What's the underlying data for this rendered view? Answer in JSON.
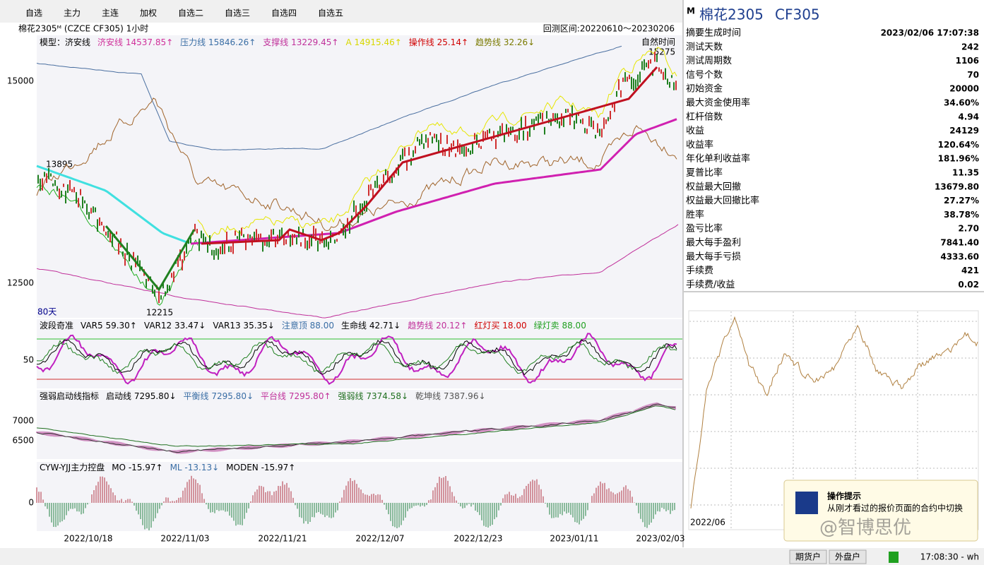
{
  "menu": [
    "自选",
    "主力",
    "主连",
    "加权",
    "自选二",
    "自选三",
    "自选四",
    "自选五"
  ],
  "chart_header": {
    "symbol": "棉花2305ᴹ (CZCE CF305) 1小时",
    "range": "回测区间:20220610～20230206"
  },
  "main_panel": {
    "legend": [
      {
        "text": "模型：济安线",
        "color": "#000000"
      },
      {
        "text": "济安线 14537.85↑",
        "color": "#d0309a"
      },
      {
        "text": "压力线 15846.26↑",
        "color": "#3a6ea5"
      },
      {
        "text": "支撑线 13229.45↑",
        "color": "#c0309a"
      },
      {
        "text": "A 14915.46↑",
        "color": "#d8d800"
      },
      {
        "text": "操作线 25.14↑",
        "color": "#d00000"
      },
      {
        "text": "趋势线 32.26↓",
        "color": "#7a7a00"
      }
    ],
    "y_labels": [
      "15000",
      "12500"
    ],
    "high": "15275",
    "low": "12215",
    "start": "13895",
    "days": "80天",
    "mode": "自然时间"
  },
  "panel2": {
    "legend": [
      {
        "text": "波段奇准",
        "color": "#000000"
      },
      {
        "text": "VAR5 59.30↑",
        "color": "#000000"
      },
      {
        "text": "VAR12 33.47↓",
        "color": "#000000"
      },
      {
        "text": "VAR13 35.35↓",
        "color": "#000000"
      },
      {
        "text": "注意顶 88.00",
        "color": "#3a6ea5"
      },
      {
        "text": "生命线 42.71↓",
        "color": "#000000"
      },
      {
        "text": "趋势线 20.12↑",
        "color": "#c0309a"
      },
      {
        "text": "红灯买 18.00",
        "color": "#d00000"
      },
      {
        "text": "绿灯卖 88.00",
        "color": "#20a020"
      }
    ],
    "y_labels": [
      "50"
    ]
  },
  "panel3": {
    "legend": [
      {
        "text": "强弱启动线指标",
        "color": "#000000"
      },
      {
        "text": "启动线 7295.80↓",
        "color": "#000000"
      },
      {
        "text": "平衡线 7295.80↓",
        "color": "#3a6ea5"
      },
      {
        "text": "平台线 7295.80↑",
        "color": "#c0309a"
      },
      {
        "text": "强弱线 7374.58↓",
        "color": "#207020"
      },
      {
        "text": "乾坤线 7387.96↓",
        "color": "#555555"
      }
    ],
    "y_labels": [
      "7000",
      "6500"
    ]
  },
  "panel4": {
    "legend": [
      {
        "text": "CYW-YJJ主力控盘",
        "color": "#000000"
      },
      {
        "text": "MO -15.97↑",
        "color": "#000000"
      },
      {
        "text": "ML -13.13↓",
        "color": "#3a6ea5"
      },
      {
        "text": "MODEN -15.97↑",
        "color": "#000000"
      }
    ],
    "y_labels": [
      "0"
    ]
  },
  "x_dates": [
    "2022/10/18",
    "2022/11/03",
    "2022/11/21",
    "2022/12/07",
    "2022/12/23",
    "2023/01/11",
    "2023/02/03"
  ],
  "side": {
    "mark": "M",
    "name": "棉花2305",
    "code": "CF305",
    "rows": [
      [
        "摘要生成时间",
        "2023/02/06 17:07:38"
      ],
      [
        "测试天数",
        "242"
      ],
      [
        "测试周期数",
        "1106"
      ],
      [
        "信号个数",
        "70"
      ],
      [
        "初始资金",
        "20000"
      ],
      [
        "最大资金使用率",
        "34.60%"
      ],
      [
        "杠杆倍数",
        "4.94"
      ],
      [
        "收益",
        "24129"
      ],
      [
        "收益率",
        "120.64%"
      ],
      [
        "年化单利收益率",
        "181.96%"
      ],
      [
        "夏普比率",
        "11.35"
      ],
      [
        "权益最大回撤",
        "13679.80"
      ],
      [
        "权益最大回撤比率",
        "27.27%"
      ],
      [
        "胜率",
        "38.78%"
      ],
      [
        "盈亏比率",
        "2.70"
      ],
      [
        "最大每手盈利",
        "7841.40"
      ],
      [
        "最大每手亏损",
        "4333.60"
      ],
      [
        "手续费",
        "421"
      ],
      [
        "手续费/收益",
        "0.02"
      ]
    ],
    "equity_date": "2022/06"
  },
  "tip": {
    "title": "操作提示",
    "body": "从刚才看过的报价页面的合约中切换",
    "watermark": "@智博思优"
  },
  "status": {
    "buttons": [
      "期货户",
      "外盘户"
    ],
    "time": "17:08:30 - wh"
  }
}
